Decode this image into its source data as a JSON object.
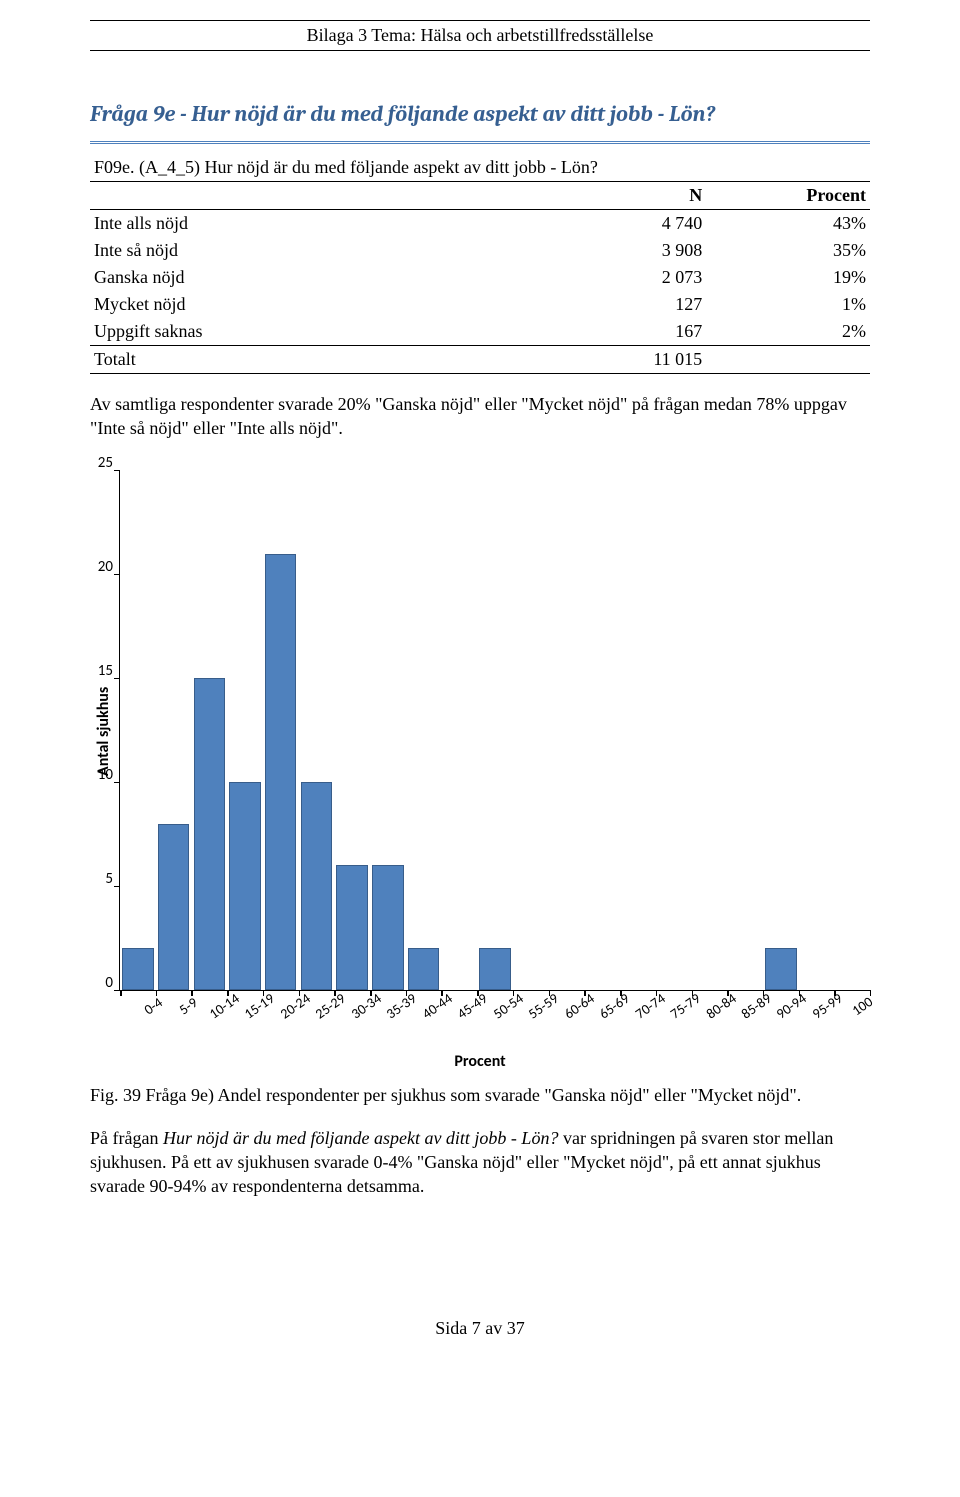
{
  "header": {
    "text": "Bilaga 3 Tema: Hälsa och arbetstillfredsställelse"
  },
  "question": {
    "title": "Fråga 9e - Hur nöjd är du med följande aspekt av ditt jobb - Lön?"
  },
  "table": {
    "caption": "F09e. (A_4_5) Hur nöjd är du med följande aspekt av ditt jobb - Lön?",
    "col_n": "N",
    "col_p": "Procent",
    "rows": [
      {
        "label": "Inte alls nöjd",
        "n": "4 740",
        "p": "43%"
      },
      {
        "label": "Inte så nöjd",
        "n": "3 908",
        "p": "35%"
      },
      {
        "label": "Ganska nöjd",
        "n": "2 073",
        "p": "19%"
      },
      {
        "label": "Mycket nöjd",
        "n": "127",
        "p": "1%"
      },
      {
        "label": "Uppgift saknas",
        "n": "167",
        "p": "2%"
      }
    ],
    "total": {
      "label": "Totalt",
      "n": "11 015",
      "p": ""
    }
  },
  "para1": "Av samtliga respondenter svarade 20% \"Ganska nöjd\" eller \"Mycket nöjd\" på frågan medan 78% uppgav \"Inte så nöjd\" eller \"Inte alls nöjd\".",
  "chart": {
    "type": "bar",
    "y_label": "Antal sjukhus",
    "x_label": "Procent",
    "ylim_max": 25,
    "y_ticks": [
      25,
      20,
      15,
      10,
      5,
      0
    ],
    "categories": [
      "0-4",
      "5-9",
      "10-14",
      "15-19",
      "20-24",
      "25-29",
      "30-34",
      "35-39",
      "40-44",
      "45-49",
      "50-54",
      "55-59",
      "60-64",
      "65-69",
      "70-74",
      "75-79",
      "80-84",
      "85-89",
      "90-94",
      "95-99",
      "100"
    ],
    "values": [
      2,
      8,
      15,
      10,
      21,
      10,
      6,
      6,
      2,
      0,
      2,
      0,
      0,
      0,
      0,
      0,
      0,
      0,
      2,
      0,
      0
    ],
    "bar_color": "#4f81bd",
    "bar_border": "#385d8a",
    "background": "#ffffff"
  },
  "fig_caption": "Fig. 39 Fråga 9e) Andel respondenter per sjukhus som svarade \"Ganska nöjd\" eller \"Mycket nöjd\".",
  "para2_pre": "På frågan ",
  "para2_italic": "Hur nöjd är du med följande aspekt av ditt jobb - Lön?",
  "para2_post": " var spridningen på svaren stor mellan sjukhusen. På ett av sjukhusen svarade 0-4% \"Ganska nöjd\" eller \"Mycket nöjd\", på ett annat sjukhus svarade 90-94% av respondenterna detsamma.",
  "footer": "Sida 7 av 37"
}
